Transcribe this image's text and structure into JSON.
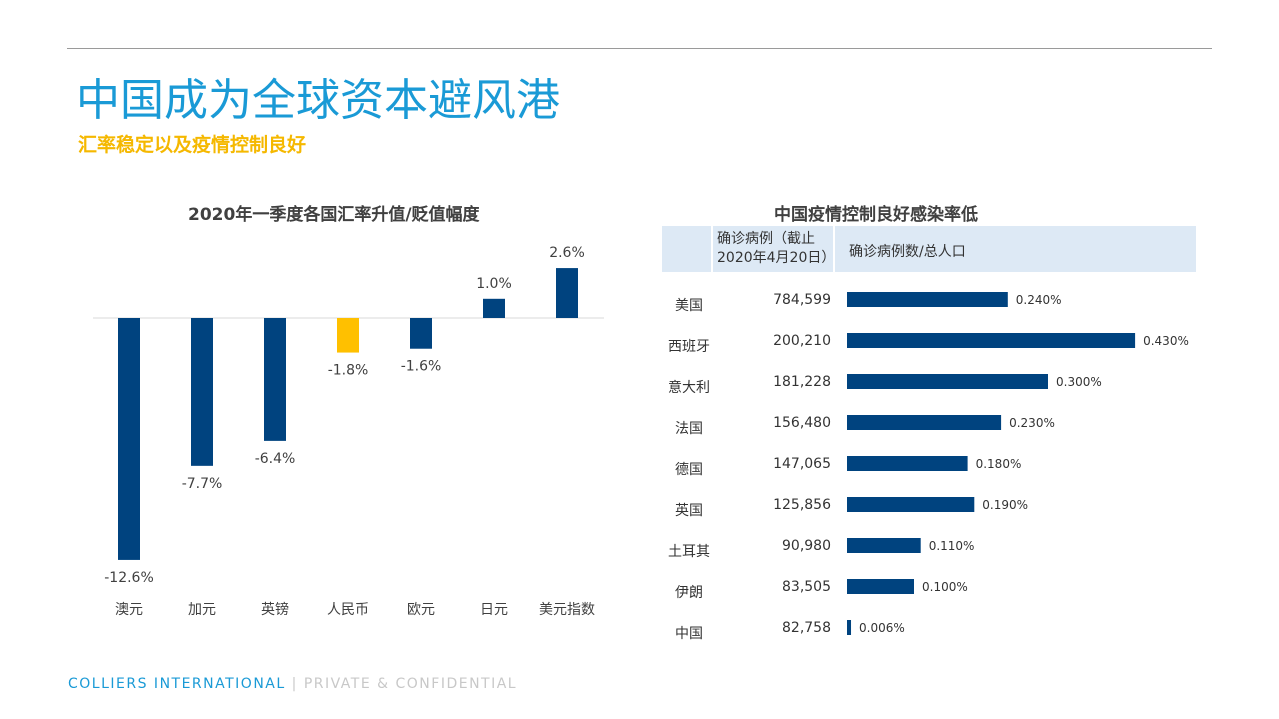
{
  "header": {
    "title": "中国成为全球资本避风港",
    "subtitle": "汇率稳定以及疫情控制良好"
  },
  "footer": {
    "brand": "COLLIERS INTERNATIONAL",
    "separator": "|",
    "note": "PRIVATE & CONFIDENTIAL"
  },
  "colors": {
    "primary": "#00437f",
    "highlight": "#ffc000",
    "title": "#1a9ad6",
    "subtitle": "#f5b800"
  },
  "chart_data": [
    {
      "type": "bar",
      "title": "2020年一季度各国汇率升值/贬值幅度",
      "categories": [
        "澳元",
        "加元",
        "英镑",
        "人民币",
        "欧元",
        "日元",
        "美元指数"
      ],
      "values": [
        -12.6,
        -7.7,
        -6.4,
        -1.8,
        -1.6,
        1.0,
        2.6
      ],
      "labels": [
        "-12.6%",
        "-7.7%",
        "-6.4%",
        "-1.8%",
        "-1.6%",
        "1.0%",
        "2.6%"
      ],
      "highlight": "人民币",
      "grid": false
    },
    {
      "type": "bar",
      "orientation": "horizontal",
      "title": "中国疫情控制良好感染率低",
      "columns": [
        "",
        "确诊病例（截止2020年4月20日）",
        "确诊病例数/总人口"
      ],
      "categories": [
        "美国",
        "西班牙",
        "意大利",
        "法国",
        "德国",
        "英国",
        "土耳其",
        "伊朗",
        "中国"
      ],
      "cases": [
        "784,599",
        "200,210",
        "181,228",
        "156,480",
        "147,065",
        "125,856",
        "90,980",
        "83,505",
        "82,758"
      ],
      "values": [
        0.24,
        0.43,
        0.3,
        0.23,
        0.18,
        0.19,
        0.11,
        0.1,
        0.006
      ],
      "labels": [
        "0.240%",
        "0.430%",
        "0.300%",
        "0.230%",
        "0.180%",
        "0.190%",
        "0.110%",
        "0.100%",
        "0.006%"
      ]
    }
  ]
}
